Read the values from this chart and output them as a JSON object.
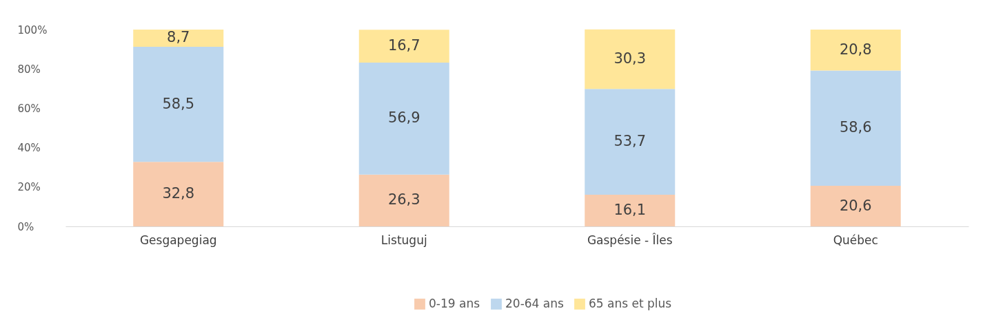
{
  "chart_data": {
    "type": "bar",
    "stacked": true,
    "legend": "bottom",
    "grid": false,
    "categories": [
      "Gesgapegiag",
      "Listuguj",
      "Gaspésie - Îles",
      "Québec"
    ],
    "series": [
      {
        "name": "0-19 ans",
        "color": "#f8cbad",
        "values": [
          32.8,
          26.3,
          16.1,
          20.6
        ],
        "value_labels": [
          "32,8",
          "26,3",
          "16,1",
          "20,6"
        ]
      },
      {
        "name": "20-64 ans",
        "color": "#bdd7ee",
        "values": [
          58.5,
          56.9,
          53.7,
          58.6
        ],
        "value_labels": [
          "58,5",
          "56,9",
          "53,7",
          "58,6"
        ]
      },
      {
        "name": "65 ans et plus",
        "color": "#ffe699",
        "values": [
          8.7,
          16.7,
          30.3,
          20.8
        ],
        "value_labels": [
          "8,7",
          "16,7",
          "30,3",
          "20,8"
        ]
      }
    ],
    "ylim": [
      0,
      100
    ],
    "yticks": [
      {
        "value": 0,
        "label": "0%"
      },
      {
        "value": 20,
        "label": "20%"
      },
      {
        "value": 40,
        "label": "40%"
      },
      {
        "value": 60,
        "label": "60%"
      },
      {
        "value": 80,
        "label": "80%"
      },
      {
        "value": 100,
        "label": "100%"
      }
    ]
  }
}
